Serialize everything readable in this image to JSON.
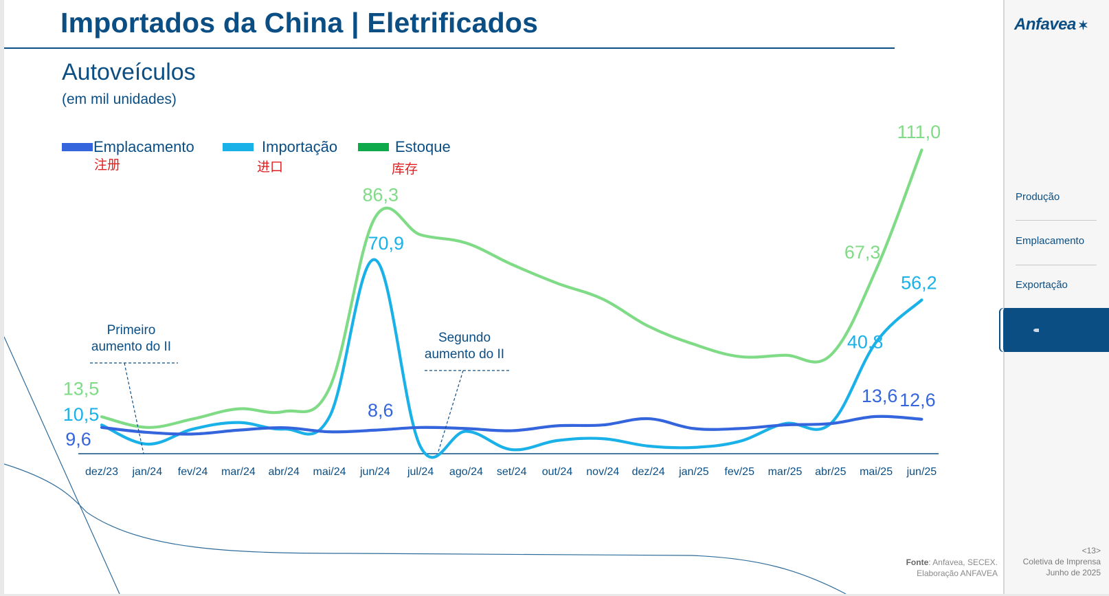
{
  "header": {
    "title": "Importados da China | Eletrificados",
    "subtitle": "Autoveículos",
    "unit": "(em mil unidades)"
  },
  "sidebar": {
    "brand": "Anfavea",
    "items": [
      "Produção",
      "Emplacamento",
      "Exportação"
    ],
    "page_number": "<13>",
    "event_line1": "Coletiva de Imprensa",
    "event_line2": "Junho de 2025"
  },
  "footer": {
    "source_label": "Fonte",
    "source_text": ": Anfavea, SECEX.",
    "elaboration": "Elaboração ANFAVEA"
  },
  "colors": {
    "title": "#0b4e84",
    "emplacamento": "#3565dc",
    "importacao": "#1ab1e8",
    "estoque": "#7fdb85",
    "estoque_legend": "#0ea94b",
    "chinese_text": "#e02020"
  },
  "chart_data": {
    "type": "line",
    "categories": [
      "dez/23",
      "jan/24",
      "fev/24",
      "mar/24",
      "abr/24",
      "mai/24",
      "jun/24",
      "jul/24",
      "ago/24",
      "set/24",
      "out/24",
      "nov/24",
      "dez/24",
      "jan/25",
      "fev/25",
      "mar/25",
      "abr/25",
      "mai/25",
      "jun/25"
    ],
    "series": [
      {
        "name": "Emplacamento",
        "name_zh": "注册",
        "color": "#3565dc",
        "values": [
          9.6,
          7.8,
          7.2,
          8.6,
          9.5,
          8.0,
          8.6,
          9.6,
          9.2,
          8.4,
          10.2,
          10.5,
          12.8,
          9.2,
          9.2,
          10.5,
          11.0,
          13.6,
          12.6
        ]
      },
      {
        "name": "Importação",
        "name_zh": "进口",
        "color": "#1ab1e8",
        "values": [
          10.5,
          3.5,
          9.0,
          11.4,
          9.0,
          13.5,
          70.9,
          2.5,
          8.2,
          1.5,
          4.8,
          5.5,
          2.8,
          2.3,
          4.5,
          11.0,
          11.0,
          40.8,
          56.2
        ]
      },
      {
        "name": "Estoque",
        "name_zh": "库存",
        "color": "#7fdb85",
        "values": [
          13.5,
          9.6,
          12.7,
          16.4,
          15.4,
          24.0,
          86.3,
          80.0,
          77.0,
          69.2,
          62.3,
          56.5,
          46.6,
          40.0,
          35.5,
          36.0,
          36.0,
          67.3,
          111.0
        ]
      }
    ],
    "data_labels": [
      {
        "series": "Estoque",
        "category": "dez/23",
        "text": "13,5"
      },
      {
        "series": "Importação",
        "category": "dez/23",
        "text": "10,5"
      },
      {
        "series": "Emplacamento",
        "category": "dez/23",
        "text": "9,6"
      },
      {
        "series": "Estoque",
        "category": "jun/24",
        "text": "86,3"
      },
      {
        "series": "Importação",
        "category": "jun/24",
        "text": "70,9"
      },
      {
        "series": "Emplacamento",
        "category": "jun/24",
        "text": "8,6"
      },
      {
        "series": "Estoque",
        "category": "mai/25",
        "text": "67,3"
      },
      {
        "series": "Importação",
        "category": "mai/25",
        "text": "40,8"
      },
      {
        "series": "Emplacamento",
        "category": "mai/25",
        "text": "13,6"
      },
      {
        "series": "Estoque",
        "category": "jun/25",
        "text": "111,0"
      },
      {
        "series": "Importação",
        "category": "jun/25",
        "text": "56,2"
      },
      {
        "series": "Emplacamento",
        "category": "jun/25",
        "text": "12,6"
      }
    ],
    "annotations": [
      {
        "lines": [
          "Primeiro",
          "aumento do II"
        ],
        "category": "jan/24"
      },
      {
        "lines": [
          "Segundo",
          "aumento do II"
        ],
        "category": "jul/24"
      }
    ],
    "ylim": [
      0,
      120
    ],
    "grid": false,
    "legend_position": "top-left"
  }
}
